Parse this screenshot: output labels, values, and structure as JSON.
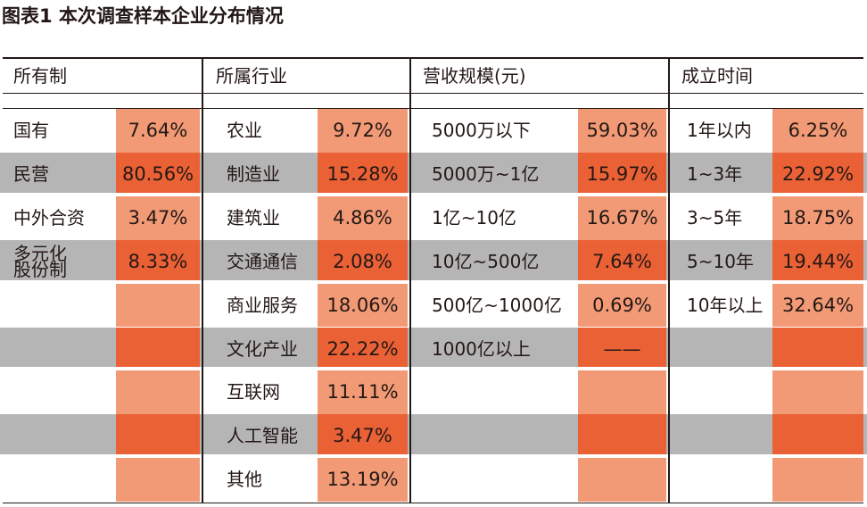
{
  "title": "图表1 本次调查样本企业分布情况",
  "colors": {
    "stripe_gray": "#b5b5b6",
    "value_light": "#f29a76",
    "value_dark": "#eb6136",
    "line": "#231815"
  },
  "chart_data": {
    "type": "table",
    "title": "图表1 本次调查样本企业分布情况",
    "groups": [
      {
        "header": "所有制",
        "rows": [
          {
            "label": "国有",
            "value": "7.64%"
          },
          {
            "label": "民营",
            "value": "80.56%"
          },
          {
            "label": "中外合资",
            "value": "3.47%"
          },
          {
            "label": "多元化\n股份制",
            "value": "8.33%"
          }
        ]
      },
      {
        "header": "所属行业",
        "rows": [
          {
            "label": "农业",
            "value": "9.72%"
          },
          {
            "label": "制造业",
            "value": "15.28%"
          },
          {
            "label": "建筑业",
            "value": "4.86%"
          },
          {
            "label": "交通通信",
            "value": "2.08%"
          },
          {
            "label": "商业服务",
            "value": "18.06%"
          },
          {
            "label": "文化产业",
            "value": "22.22%"
          },
          {
            "label": "互联网",
            "value": "11.11%"
          },
          {
            "label": "人工智能",
            "value": "3.47%"
          },
          {
            "label": "其他",
            "value": "13.19%"
          }
        ]
      },
      {
        "header": "营收规模(元)",
        "rows": [
          {
            "label": "5000万以下",
            "value": "59.03%"
          },
          {
            "label": "5000万~1亿",
            "value": "15.97%"
          },
          {
            "label": "1亿~10亿",
            "value": "16.67%"
          },
          {
            "label": "10亿~500亿",
            "value": "7.64%"
          },
          {
            "label": "500亿~1000亿",
            "value": "0.69%"
          },
          {
            "label": "1000亿以上",
            "value": "——"
          }
        ]
      },
      {
        "header": "成立时间",
        "rows": [
          {
            "label": "1年以内",
            "value": "6.25%"
          },
          {
            "label": "1~3年",
            "value": "22.92%"
          },
          {
            "label": "3~5年",
            "value": "18.75%"
          },
          {
            "label": "5~10年",
            "value": "19.44%"
          },
          {
            "label": "10年以上",
            "value": "32.64%"
          }
        ]
      }
    ]
  }
}
